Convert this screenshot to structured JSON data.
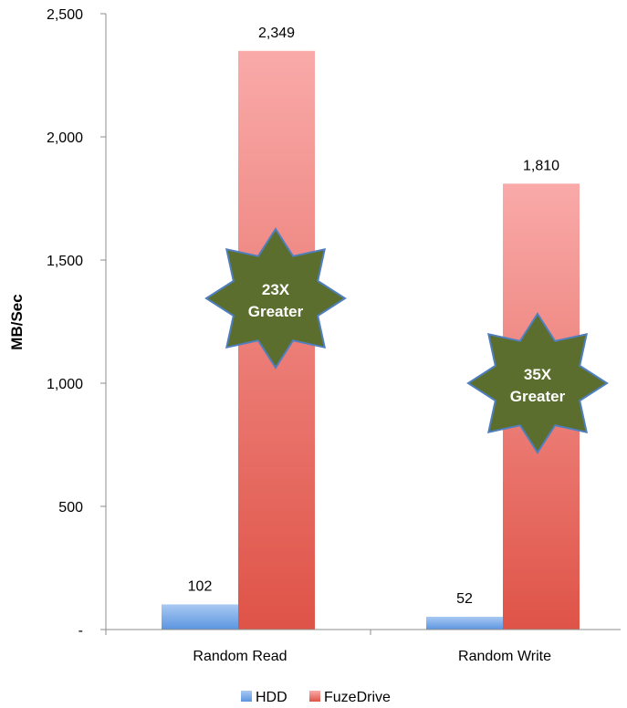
{
  "chart_data": {
    "type": "bar",
    "ylabel": "MB/Sec",
    "ylim": [
      0,
      2500
    ],
    "yticks": [
      0,
      500,
      1000,
      1500,
      2000,
      2500
    ],
    "ytick_labels": [
      "-",
      "500",
      "1,000",
      "1,500",
      "2,000",
      "2,500"
    ],
    "categories": [
      "Random Read",
      "Random Write"
    ],
    "series": [
      {
        "name": "HDD",
        "values": [
          102,
          52
        ],
        "value_labels": [
          "102",
          "52"
        ],
        "color_top": "#a9c9f2",
        "color_bottom": "#5b95e0"
      },
      {
        "name": "FuzeDrive",
        "values": [
          2349,
          1810
        ],
        "value_labels": [
          "2,349",
          "1,810"
        ],
        "color_top": "#f9aaa9",
        "color_bottom": "#df5347"
      }
    ],
    "grid": false,
    "legend_position": "bottom",
    "annotations": [
      {
        "category": "Random Read",
        "line1": "23X",
        "line2": "Greater"
      },
      {
        "category": "Random Write",
        "line1": "35X",
        "line2": "Greater"
      }
    ],
    "annotation_fill": "#5b6e2d",
    "annotation_stroke": "#4f7fbe"
  }
}
